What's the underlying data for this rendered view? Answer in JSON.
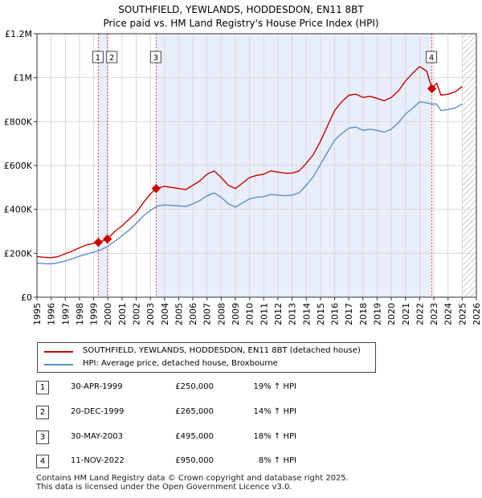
{
  "colors": {
    "property": "#cc0000",
    "hpi": "#5b8fd0",
    "shade": "#e8eefa",
    "grid": "#d8d8d8",
    "marker_line": "#cc0000"
  },
  "chart_data": {
    "type": "line",
    "title": "SOUTHFIELD, YEWLANDS, HODDESDON, EN11 8BT",
    "subtitle": "Price paid vs. HM Land Registry's House Price Index (HPI)",
    "xlim": [
      1995,
      2026
    ],
    "ylim": [
      0,
      1200000
    ],
    "x_ticks": [
      "1995",
      "1996",
      "1997",
      "1998",
      "1999",
      "2000",
      "2001",
      "2002",
      "2003",
      "2004",
      "2005",
      "2006",
      "2007",
      "2008",
      "2009",
      "2010",
      "2011",
      "2012",
      "2013",
      "2014",
      "2015",
      "2016",
      "2017",
      "2018",
      "2019",
      "2020",
      "2021",
      "2022",
      "2023",
      "2024",
      "2025",
      "2026"
    ],
    "y_ticks": [
      {
        "label": "£0",
        "value": 0
      },
      {
        "label": "£200K",
        "value": 200000
      },
      {
        "label": "£400K",
        "value": 400000
      },
      {
        "label": "£600K",
        "value": 600000
      },
      {
        "label": "£800K",
        "value": 800000
      },
      {
        "label": "£1M",
        "value": 1000000
      },
      {
        "label": "£1.2M",
        "value": 1200000
      }
    ],
    "shaded_ranges": [
      [
        1999.33,
        1999.97
      ],
      [
        2003.41,
        2022.86
      ]
    ],
    "hatched_from": 2025.0,
    "series": [
      {
        "name": "SOUTHFIELD, YEWLANDS, HODDESDON, EN11 8BT (detached house)",
        "color": "#cc0000",
        "x": [
          1995.0,
          1995.5,
          1996.0,
          1996.5,
          1997.0,
          1997.5,
          1998.0,
          1998.5,
          1999.0,
          1999.33,
          1999.97,
          2000.5,
          2001.0,
          2001.5,
          2002.0,
          2002.5,
          2003.0,
          2003.41,
          2004.0,
          2004.5,
          2005.0,
          2005.5,
          2006.0,
          2006.5,
          2007.0,
          2007.5,
          2008.0,
          2008.5,
          2009.0,
          2009.5,
          2010.0,
          2010.5,
          2011.0,
          2011.5,
          2012.0,
          2012.5,
          2013.0,
          2013.5,
          2014.0,
          2014.5,
          2015.0,
          2015.5,
          2016.0,
          2016.5,
          2017.0,
          2017.5,
          2018.0,
          2018.5,
          2019.0,
          2019.5,
          2020.0,
          2020.5,
          2021.0,
          2021.5,
          2022.0,
          2022.5,
          2022.86,
          2023.2,
          2023.5,
          2024.0,
          2024.5,
          2025.0
        ],
        "y": [
          185000,
          182000,
          180000,
          185000,
          198000,
          210000,
          225000,
          238000,
          245000,
          250000,
          265000,
          300000,
          325000,
          355000,
          385000,
          430000,
          470000,
          495000,
          505000,
          500000,
          495000,
          490000,
          510000,
          530000,
          560000,
          575000,
          545000,
          510000,
          495000,
          520000,
          545000,
          555000,
          560000,
          575000,
          570000,
          565000,
          565000,
          575000,
          610000,
          650000,
          710000,
          780000,
          850000,
          890000,
          920000,
          925000,
          910000,
          915000,
          905000,
          895000,
          910000,
          940000,
          985000,
          1020000,
          1050000,
          1030000,
          950000,
          975000,
          920000,
          925000,
          935000,
          960000
        ]
      },
      {
        "name": "HPI: Average price, detached house, Broxbourne",
        "color": "#5b8fd0",
        "x": [
          1995.0,
          1995.5,
          1996.0,
          1996.5,
          1997.0,
          1997.5,
          1998.0,
          1998.5,
          1999.0,
          1999.5,
          2000.0,
          2000.5,
          2001.0,
          2001.5,
          2002.0,
          2002.5,
          2003.0,
          2003.5,
          2004.0,
          2004.5,
          2005.0,
          2005.5,
          2006.0,
          2006.5,
          2007.0,
          2007.5,
          2008.0,
          2008.5,
          2009.0,
          2009.5,
          2010.0,
          2010.5,
          2011.0,
          2011.5,
          2012.0,
          2012.5,
          2013.0,
          2013.5,
          2014.0,
          2014.5,
          2015.0,
          2015.5,
          2016.0,
          2016.5,
          2017.0,
          2017.5,
          2018.0,
          2018.5,
          2019.0,
          2019.5,
          2020.0,
          2020.5,
          2021.0,
          2021.5,
          2022.0,
          2022.5,
          2022.86,
          2023.2,
          2023.5,
          2024.0,
          2024.5,
          2025.0
        ],
        "y": [
          155000,
          153000,
          152000,
          157000,
          165000,
          175000,
          187000,
          196000,
          205000,
          215000,
          232000,
          255000,
          280000,
          305000,
          335000,
          370000,
          395000,
          415000,
          420000,
          418000,
          416000,
          413000,
          425000,
          440000,
          462000,
          475000,
          455000,
          425000,
          410000,
          430000,
          448000,
          455000,
          458000,
          468000,
          465000,
          462000,
          465000,
          475000,
          510000,
          550000,
          605000,
          660000,
          715000,
          745000,
          770000,
          775000,
          760000,
          765000,
          760000,
          752000,
          765000,
          795000,
          835000,
          860000,
          890000,
          885000,
          880000,
          880000,
          850000,
          855000,
          862000,
          880000
        ]
      }
    ],
    "sales": [
      {
        "label": "1",
        "x": 1999.33,
        "y": 250000
      },
      {
        "label": "2",
        "x": 1999.97,
        "y": 265000
      },
      {
        "label": "3",
        "x": 2003.41,
        "y": 495000
      },
      {
        "label": "4",
        "x": 2022.86,
        "y": 950000
      }
    ]
  },
  "legend": {
    "property": "SOUTHFIELD, YEWLANDS, HODDESDON, EN11 8BT (detached house)",
    "hpi": "HPI: Average price, detached house, Broxbourne"
  },
  "transactions": [
    {
      "num": "1",
      "date": "30-APR-1999",
      "price": "£250,000",
      "hpi": "19% ↑ HPI"
    },
    {
      "num": "2",
      "date": "20-DEC-1999",
      "price": "£265,000",
      "hpi": "14% ↑ HPI"
    },
    {
      "num": "3",
      "date": "30-MAY-2003",
      "price": "£495,000",
      "hpi": "18% ↑ HPI"
    },
    {
      "num": "4",
      "date": "11-NOV-2022",
      "price": "£950,000",
      "hpi": "8% ↑ HPI"
    }
  ],
  "footer": {
    "line1": "Contains HM Land Registry data © Crown copyright and database right 2025.",
    "line2": "This data is licensed under the Open Government Licence v3.0."
  }
}
